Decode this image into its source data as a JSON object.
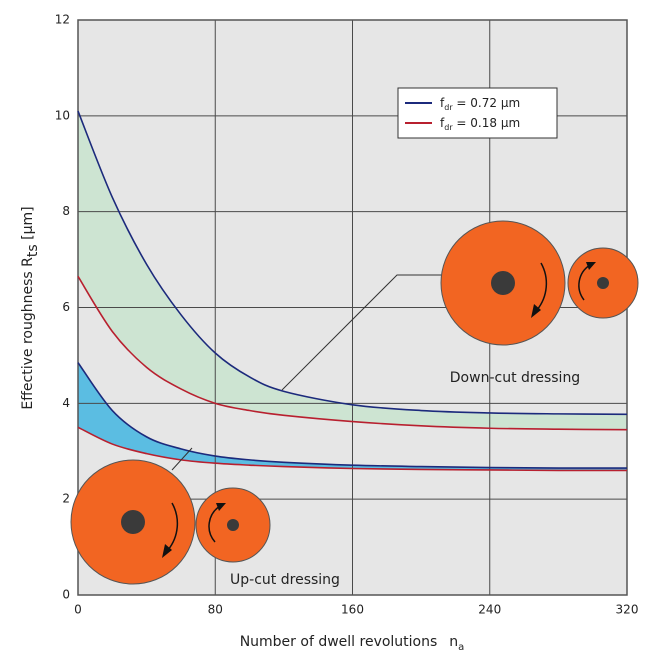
{
  "chart_data": {
    "type": "line",
    "x": [
      0,
      20,
      40,
      60,
      80,
      100,
      120,
      160,
      200,
      240,
      280,
      320
    ],
    "xlim": [
      0,
      320
    ],
    "xticks": [
      0,
      80,
      160,
      240,
      320
    ],
    "ylim": [
      0,
      12
    ],
    "yticks": [
      0,
      2,
      4,
      6,
      8,
      10,
      12
    ],
    "grid": true,
    "x_label": {
      "text": "Number of dwell revolutions",
      "symbol": "n",
      "subscript": "a"
    },
    "y_label": {
      "text": "Effective roughness R",
      "subscript": "ts",
      "unit": " [µm]"
    },
    "legend_position": "upper right",
    "legend": [
      {
        "symbol": "f",
        "subscript": "dr",
        "text": " = 0.72 µm",
        "color": "#1c2a7c"
      },
      {
        "symbol": "f",
        "subscript": "dr",
        "text": " = 0.18 µm",
        "color": "#b8202f"
      }
    ],
    "groups": [
      {
        "label": "Down-cut dressing",
        "fill": "#cde4d2",
        "series": [
          {
            "legend": 0,
            "values": [
              10.1,
              8.3,
              6.9,
              5.85,
              5.05,
              4.55,
              4.25,
              3.97,
              3.85,
              3.8,
              3.78,
              3.77
            ]
          },
          {
            "legend": 1,
            "values": [
              6.65,
              5.5,
              4.75,
              4.3,
              4.0,
              3.85,
              3.75,
              3.62,
              3.53,
              3.48,
              3.46,
              3.45
            ]
          }
        ]
      },
      {
        "label": "Up-cut dressing",
        "fill": "#5bbde2",
        "series": [
          {
            "legend": 0,
            "values": [
              4.85,
              3.85,
              3.3,
              3.05,
              2.9,
              2.82,
              2.77,
              2.71,
              2.68,
              2.66,
              2.65,
              2.65
            ]
          },
          {
            "legend": 1,
            "values": [
              3.5,
              3.15,
              2.95,
              2.82,
              2.75,
              2.71,
              2.68,
              2.64,
              2.62,
              2.61,
              2.6,
              2.6
            ]
          }
        ]
      }
    ]
  }
}
